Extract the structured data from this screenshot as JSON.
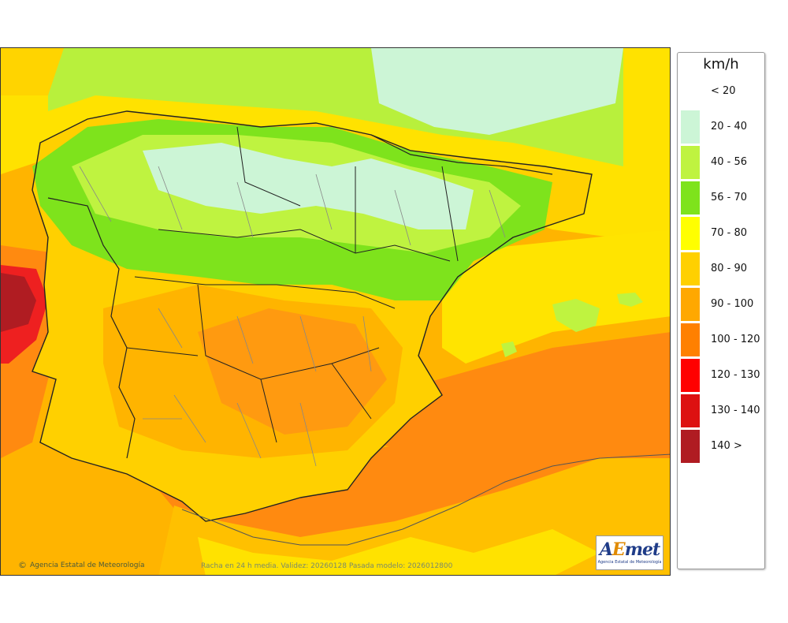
{
  "legend": {
    "unit": "km/h",
    "classes": [
      {
        "label": "< 20",
        "color": ""
      },
      {
        "label": "20 - 40",
        "color": "#ccf5d6"
      },
      {
        "label": "40 - 56",
        "color": "#bff340"
      },
      {
        "label": "56 - 70",
        "color": "#7ee31c"
      },
      {
        "label": "70 - 80",
        "color": "#ffff00"
      },
      {
        "label": "80 - 90",
        "color": "#ffd000"
      },
      {
        "label": "90 - 100",
        "color": "#ffa800"
      },
      {
        "label": "100 - 120",
        "color": "#ff8000"
      },
      {
        "label": "120 - 130",
        "color": "#ff0000"
      },
      {
        "label": "130 - 140",
        "color": "#dd1111"
      },
      {
        "label": "140 >",
        "color": "#b01c22"
      }
    ]
  },
  "map": {
    "credit": "Agencia Estatal de Meteorología",
    "credit_icon": "copyright-icon",
    "caption": "Racha en 24 h media. Validez: 20260128 Pasada modelo: 2026012800",
    "logo": {
      "text_a": "A",
      "text_e": "E",
      "text_rest": "met",
      "subtitle": "Agencia Estatal de Meteorología"
    },
    "colors": {
      "sea_west": "#ffb000",
      "sea_south": "#ff9a1a",
      "bay": "#ffff40",
      "north_calm": "#ccf5d6",
      "border": "#222222",
      "province": "#888888"
    }
  }
}
